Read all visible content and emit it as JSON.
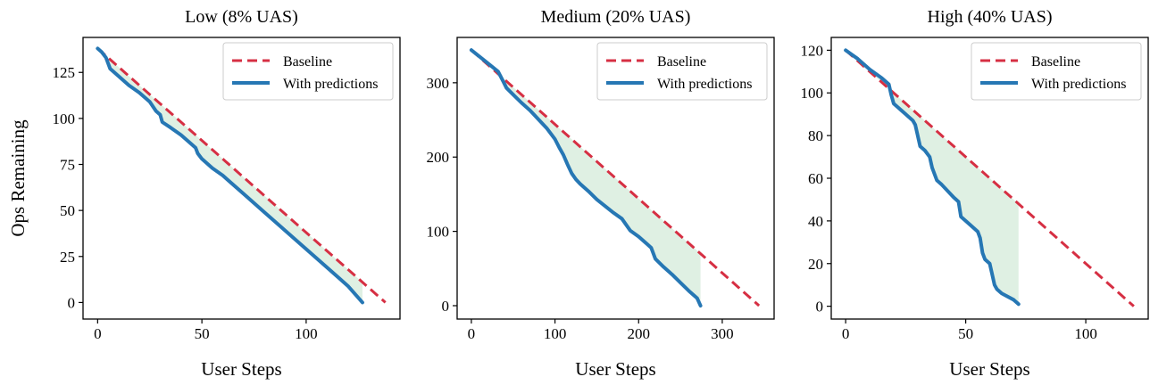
{
  "chart_data": [
    {
      "type": "line",
      "title": "Low (8% UAS)",
      "xlabel": "User Steps",
      "ylabel": "Ops Remaining",
      "xlim": [
        -7,
        145
      ],
      "ylim": [
        -9,
        144
      ],
      "xticks": [
        0,
        50,
        100
      ],
      "yticks": [
        0,
        25,
        50,
        75,
        100,
        125
      ],
      "legend": "top-right",
      "fill_between": true,
      "series": [
        {
          "name": "Baseline",
          "style": "dashed",
          "color": "#d62f43",
          "x": [
            0,
            138
          ],
          "y": [
            138,
            0
          ]
        },
        {
          "name": "With predictions",
          "style": "solid",
          "color": "#2677b4",
          "x": [
            0,
            2,
            4,
            5,
            6,
            10,
            15,
            20,
            25,
            28,
            30,
            31,
            35,
            40,
            45,
            47,
            48,
            50,
            55,
            60,
            70,
            80,
            90,
            100,
            110,
            120,
            127
          ],
          "y": [
            138,
            136,
            133,
            130,
            127,
            123,
            118,
            114,
            109,
            104,
            102,
            98,
            95,
            91,
            86,
            84,
            81,
            78,
            73,
            69,
            59,
            49,
            39,
            29,
            19,
            9,
            0
          ]
        }
      ]
    },
    {
      "type": "line",
      "title": "Medium (20% UAS)",
      "xlabel": "User Steps",
      "ylabel": "",
      "xlim": [
        -17,
        362
      ],
      "ylim": [
        -18,
        361
      ],
      "xticks": [
        0,
        100,
        200,
        300
      ],
      "yticks": [
        0,
        100,
        200,
        300
      ],
      "legend": "top-right",
      "fill_between": true,
      "series": [
        {
          "name": "Baseline",
          "style": "dashed",
          "color": "#d62f43",
          "x": [
            0,
            344
          ],
          "y": [
            344,
            0
          ]
        },
        {
          "name": "With predictions",
          "style": "solid",
          "color": "#2677b4",
          "x": [
            0,
            10,
            20,
            32,
            38,
            42,
            50,
            60,
            70,
            80,
            90,
            100,
            105,
            110,
            115,
            120,
            125,
            130,
            140,
            150,
            160,
            170,
            180,
            190,
            200,
            210,
            215,
            220,
            230,
            240,
            250,
            260,
            270,
            274
          ],
          "y": [
            344,
            335,
            326,
            315,
            302,
            293,
            284,
            273,
            263,
            251,
            239,
            224,
            213,
            203,
            190,
            178,
            170,
            164,
            154,
            143,
            134,
            125,
            117,
            101,
            93,
            83,
            78,
            63,
            52,
            42,
            31,
            20,
            10,
            0
          ]
        }
      ]
    },
    {
      "type": "line",
      "title": "High (40% UAS)",
      "xlabel": "User Steps",
      "ylabel": "",
      "xlim": [
        -6,
        126
      ],
      "ylim": [
        -6,
        126
      ],
      "xticks": [
        0,
        50,
        100
      ],
      "yticks": [
        0,
        20,
        40,
        60,
        80,
        100,
        120
      ],
      "legend": "top-right",
      "fill_between": true,
      "series": [
        {
          "name": "Baseline",
          "style": "dashed",
          "color": "#d62f43",
          "x": [
            0,
            120
          ],
          "y": [
            120,
            0
          ]
        },
        {
          "name": "With predictions",
          "style": "solid",
          "color": "#2677b4",
          "x": [
            0,
            5,
            10,
            15,
            18,
            19,
            20,
            22,
            25,
            28,
            29,
            30,
            31,
            33,
            35,
            36,
            38,
            40,
            45,
            47,
            48,
            50,
            55,
            56,
            57,
            58,
            60,
            61,
            62,
            63,
            65,
            70,
            72
          ],
          "y": [
            120,
            116,
            111,
            107,
            104,
            99,
            95,
            93,
            90,
            87,
            85,
            80,
            75,
            73,
            70,
            65,
            59,
            57,
            51,
            49,
            42,
            40,
            35,
            32,
            25,
            22,
            20,
            15,
            10,
            8,
            6,
            3,
            1
          ]
        }
      ]
    }
  ]
}
